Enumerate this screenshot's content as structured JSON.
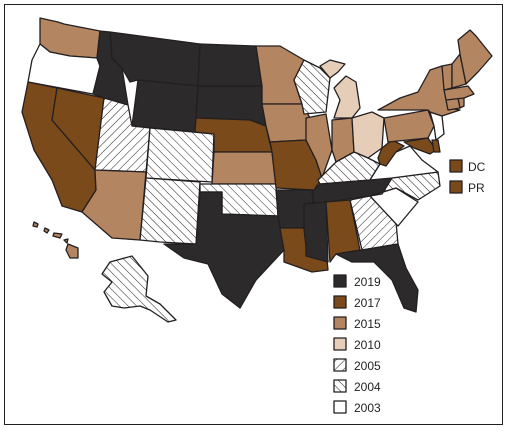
{
  "colors": {
    "c2019": "#2c2a2b",
    "c2017": "#7b4a1a",
    "c2015": "#b38561",
    "c2010": "#e6cdb7",
    "c2003": "#ffffff",
    "outline": "#231f20"
  },
  "legend": {
    "items": [
      {
        "label": "2019",
        "key": "c2019"
      },
      {
        "label": "2017",
        "key": "c2017"
      },
      {
        "label": "2015",
        "key": "c2015"
      },
      {
        "label": "2010",
        "key": "c2010"
      },
      {
        "label": "2005",
        "key": "h2005"
      },
      {
        "label": "2004",
        "key": "h2004"
      },
      {
        "label": "2003",
        "key": "c2003"
      }
    ]
  },
  "territories": [
    {
      "label": "DC",
      "key": "c2017"
    },
    {
      "label": "PR",
      "key": "c2017"
    }
  ]
}
